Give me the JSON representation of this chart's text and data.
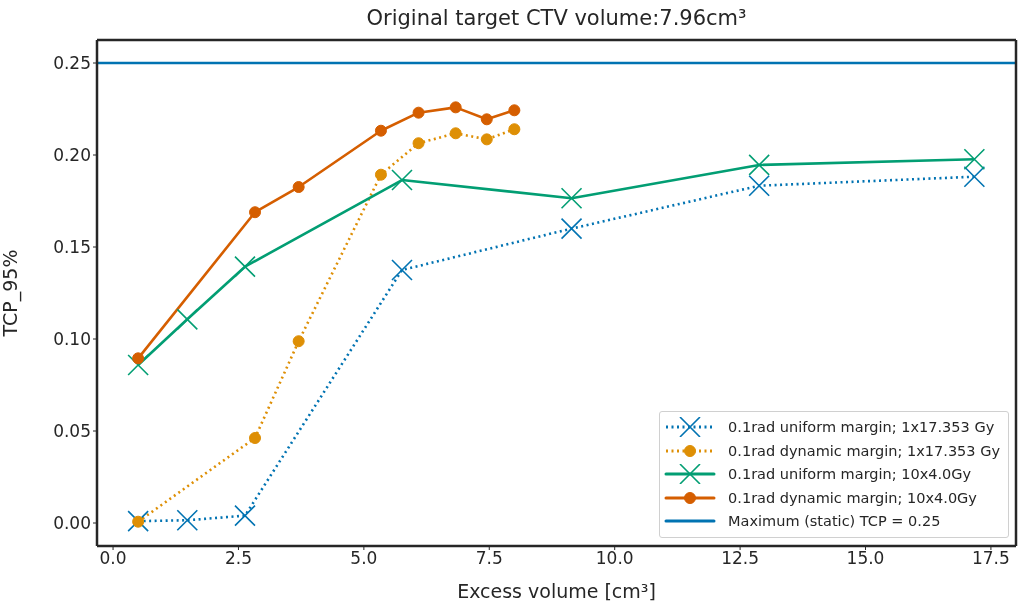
{
  "chart_data": {
    "type": "line",
    "title": "Original target CTV volume:7.96cm³",
    "xlabel": "Excess volume [cm³]",
    "ylabel": "TCP_95%",
    "xlim": [
      -0.32,
      18.0
    ],
    "xticks": [
      {
        "value": 0,
        "label": "0.0"
      },
      {
        "value": 2.5,
        "label": "2.5"
      },
      {
        "value": 5,
        "label": "5.0"
      },
      {
        "value": 7.5,
        "label": "7.5"
      },
      {
        "value": 10,
        "label": "10.0"
      },
      {
        "value": 12.5,
        "label": "12.5"
      },
      {
        "value": 15,
        "label": "15.0"
      },
      {
        "value": 17.5,
        "label": "17.5"
      }
    ],
    "ylim": [
      -0.0125,
      0.2625
    ],
    "yticks": [
      {
        "value": 0,
        "label": "0.00"
      },
      {
        "value": 0.05,
        "label": "0.05"
      },
      {
        "value": 0.1,
        "label": "0.10"
      },
      {
        "value": 0.15,
        "label": "0.15"
      },
      {
        "value": 0.2,
        "label": "0.20"
      },
      {
        "value": 0.25,
        "label": "0.25"
      }
    ],
    "grid": false,
    "legend": "bottom right",
    "series": [
      {
        "name": "0.1rad uniform margin; 1x17.353 Gy",
        "color": "#0173b2",
        "marker": "cross",
        "line_style": "dotted",
        "x": [
          0.5,
          1.48,
          2.63,
          5.76,
          9.14,
          12.88,
          17.17
        ],
        "values": [
          0.001,
          0.0015,
          0.004,
          0.1375,
          0.16,
          0.1833,
          0.1882
        ]
      },
      {
        "name": "0.1rad dynamic margin; 1x17.353 Gy",
        "color": "#de8f05",
        "marker": "circle",
        "line_style": "dotted",
        "x": [
          0.5,
          2.83,
          3.7,
          5.34,
          6.09,
          6.83,
          7.45,
          8.0
        ],
        "values": [
          0.0007,
          0.0462,
          0.0988,
          0.1893,
          0.2064,
          0.2118,
          0.2085,
          0.214
        ]
      },
      {
        "name": "0.1rad uniform margin; 10x4.0Gy",
        "color": "#029e73",
        "marker": "cross",
        "line_style": "solid",
        "x": [
          0.5,
          1.48,
          2.63,
          5.76,
          9.14,
          12.88,
          17.17
        ],
        "values": [
          0.0859,
          0.1107,
          0.1393,
          0.1864,
          0.1765,
          0.1946,
          0.1977
        ]
      },
      {
        "name": "0.1rad dynamic margin; 10x4.0Gy",
        "color": "#d55e00",
        "marker": "circle",
        "line_style": "solid",
        "x": [
          0.5,
          2.83,
          3.7,
          5.34,
          6.09,
          6.83,
          7.45,
          8.0
        ],
        "values": [
          0.0895,
          0.1689,
          0.1826,
          0.2132,
          0.223,
          0.2259,
          0.2194,
          0.2243
        ]
      }
    ],
    "ref_lines": [
      {
        "axis": "y",
        "value": 0.25,
        "label": "Maximum (static) TCP = 0.25",
        "color": "#0173b2",
        "line_style": "solid"
      }
    ]
  }
}
